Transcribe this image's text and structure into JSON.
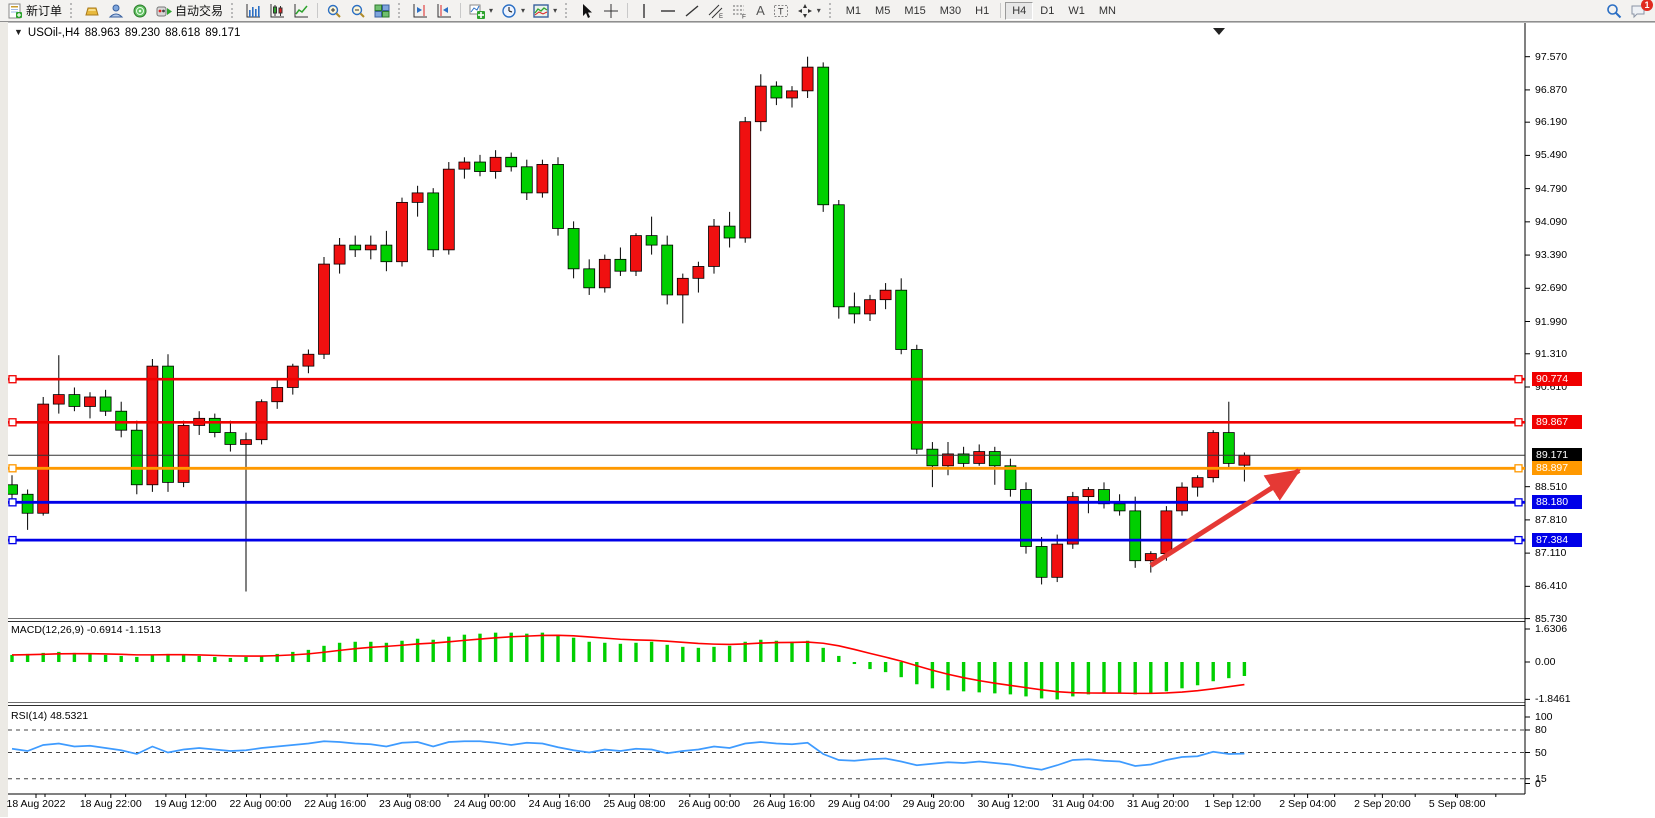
{
  "toolbar": {
    "new_order_label": "新订单",
    "auto_trading_label": "自动交易",
    "text_tool_label": "A",
    "label_tool_label": "T",
    "channel_tool_suffix": "E",
    "fibo_tool_suffix": "F",
    "timeframes": [
      "M1",
      "M5",
      "M15",
      "M30",
      "H1",
      "H4",
      "D1",
      "W1",
      "MN"
    ],
    "active_timeframe": "H4",
    "notification_count": "1"
  },
  "chart_header": {
    "symbol": "USOil-,H4",
    "open": "88.963",
    "high": "89.230",
    "low": "88.618",
    "close": "89.171"
  },
  "indicator_macd": {
    "label": "MACD(12,26,9)",
    "values": "-0.6914 -1.1513"
  },
  "indicator_rsi": {
    "label": "RSI(14)",
    "value": "48.5321"
  },
  "price_axis": {
    "ticks": [
      "97.570",
      "96.870",
      "96.190",
      "95.490",
      "94.790",
      "94.090",
      "93.390",
      "92.690",
      "91.990",
      "91.310",
      "90.610",
      "88.510",
      "87.810",
      "87.110",
      "86.410",
      "85.730"
    ]
  },
  "price_badges": [
    {
      "label": "90.774",
      "price": 90.774,
      "color": "#f00000"
    },
    {
      "label": "89.867",
      "price": 89.867,
      "color": "#f00000"
    },
    {
      "label": "89.171",
      "price": 89.171,
      "color": "#000000"
    },
    {
      "label": "88.897",
      "price": 88.897,
      "color": "#ff9900"
    },
    {
      "label": "88.180",
      "price": 88.18,
      "color": "#0000e8"
    },
    {
      "label": "87.384",
      "price": 87.384,
      "color": "#0000e8"
    }
  ],
  "macd_axis": [
    {
      "label": "1.6306",
      "value": 1.6306
    },
    {
      "label": "0.00",
      "value": 0.0
    },
    {
      "label": "-1.8461",
      "value": -1.8461
    }
  ],
  "rsi_axis": [
    {
      "label": "100",
      "value": 100
    },
    {
      "label": "80",
      "value": 80
    },
    {
      "label": "50",
      "value": 50
    },
    {
      "label": "15",
      "value": 15
    },
    {
      "label": "0",
      "value": 0
    }
  ],
  "time_axis": [
    "18 Aug 2022",
    "18 Aug 22:00",
    "19 Aug 12:00",
    "22 Aug 00:00",
    "22 Aug 16:00",
    "23 Aug 08:00",
    "24 Aug 00:00",
    "24 Aug 16:00",
    "25 Aug 08:00",
    "26 Aug 00:00",
    "26 Aug 16:00",
    "29 Aug 04:00",
    "29 Aug 20:00",
    "30 Aug 12:00",
    "31 Aug 04:00",
    "31 Aug 20:00",
    "1 Sep 12:00",
    "2 Sep 04:00",
    "2 Sep 20:00",
    "5 Sep 08:00"
  ],
  "chart_data": {
    "type": "candlestick",
    "symbol": "USOil",
    "timeframe": "H4",
    "colors": {
      "up": "#f01010",
      "down": "#00cf00",
      "wick": "#000000",
      "macd_bar": "#00cf00",
      "macd_signal": "#ff0000",
      "rsi_line": "#3e9bff",
      "arrow": "#e53935"
    },
    "candles": [
      [
        88.55,
        88.75,
        88.25,
        88.35
      ],
      [
        88.35,
        88.45,
        87.6,
        87.95
      ],
      [
        87.95,
        90.4,
        87.9,
        90.25
      ],
      [
        90.25,
        91.28,
        90.05,
        90.45
      ],
      [
        90.45,
        90.6,
        90.1,
        90.2
      ],
      [
        90.2,
        90.5,
        89.95,
        90.4
      ],
      [
        90.4,
        90.55,
        90.0,
        90.1
      ],
      [
        90.1,
        90.3,
        89.55,
        89.7
      ],
      [
        89.7,
        89.9,
        88.35,
        88.55
      ],
      [
        88.55,
        91.2,
        88.4,
        91.05
      ],
      [
        91.05,
        91.3,
        88.4,
        88.6
      ],
      [
        88.6,
        89.9,
        88.5,
        89.8
      ],
      [
        89.8,
        90.1,
        89.6,
        89.95
      ],
      [
        89.95,
        90.05,
        89.55,
        89.65
      ],
      [
        89.65,
        89.9,
        89.25,
        89.4
      ],
      [
        89.4,
        89.65,
        86.3,
        89.5
      ],
      [
        89.5,
        90.35,
        89.4,
        90.3
      ],
      [
        90.3,
        90.8,
        90.15,
        90.6
      ],
      [
        90.6,
        91.1,
        90.45,
        91.05
      ],
      [
        91.05,
        91.4,
        90.9,
        91.3
      ],
      [
        91.3,
        93.35,
        91.2,
        93.2
      ],
      [
        93.2,
        93.75,
        93.0,
        93.6
      ],
      [
        93.6,
        93.8,
        93.35,
        93.5
      ],
      [
        93.5,
        93.8,
        93.3,
        93.6
      ],
      [
        93.6,
        93.9,
        93.05,
        93.25
      ],
      [
        93.25,
        94.6,
        93.15,
        94.5
      ],
      [
        94.5,
        94.85,
        94.2,
        94.7
      ],
      [
        94.7,
        94.8,
        93.35,
        93.5
      ],
      [
        93.5,
        95.35,
        93.4,
        95.2
      ],
      [
        95.2,
        95.45,
        95.0,
        95.35
      ],
      [
        95.35,
        95.5,
        95.05,
        95.15
      ],
      [
        95.15,
        95.6,
        95.0,
        95.45
      ],
      [
        95.45,
        95.55,
        95.15,
        95.25
      ],
      [
        95.25,
        95.4,
        94.55,
        94.7
      ],
      [
        94.7,
        95.4,
        94.6,
        95.3
      ],
      [
        95.3,
        95.45,
        93.8,
        93.95
      ],
      [
        93.95,
        94.1,
        92.9,
        93.1
      ],
      [
        93.1,
        93.3,
        92.55,
        92.7
      ],
      [
        92.7,
        93.4,
        92.6,
        93.3
      ],
      [
        93.3,
        93.55,
        92.95,
        93.05
      ],
      [
        93.05,
        93.85,
        92.95,
        93.8
      ],
      [
        93.8,
        94.2,
        93.4,
        93.6
      ],
      [
        93.6,
        93.8,
        92.35,
        92.55
      ],
      [
        92.55,
        93.0,
        91.95,
        92.9
      ],
      [
        92.9,
        93.25,
        92.6,
        93.15
      ],
      [
        93.15,
        94.15,
        93.0,
        94.0
      ],
      [
        94.0,
        94.3,
        93.55,
        93.75
      ],
      [
        93.75,
        96.3,
        93.65,
        96.2
      ],
      [
        96.2,
        97.2,
        96.0,
        96.95
      ],
      [
        96.95,
        97.05,
        96.55,
        96.7
      ],
      [
        96.7,
        96.95,
        96.5,
        96.85
      ],
      [
        96.85,
        97.57,
        96.7,
        97.35
      ],
      [
        97.35,
        97.45,
        94.3,
        94.45
      ],
      [
        94.45,
        94.55,
        92.05,
        92.3
      ],
      [
        92.3,
        92.6,
        91.95,
        92.15
      ],
      [
        92.15,
        92.55,
        92.0,
        92.45
      ],
      [
        92.45,
        92.8,
        92.25,
        92.65
      ],
      [
        92.65,
        92.9,
        91.3,
        91.4
      ],
      [
        91.4,
        91.5,
        89.2,
        89.3
      ],
      [
        89.3,
        89.45,
        88.5,
        88.95
      ],
      [
        88.95,
        89.45,
        88.75,
        89.2
      ],
      [
        89.2,
        89.35,
        88.9,
        89.0
      ],
      [
        89.0,
        89.4,
        88.95,
        89.25
      ],
      [
        89.25,
        89.35,
        88.55,
        88.95
      ],
      [
        88.95,
        89.1,
        88.3,
        88.45
      ],
      [
        88.45,
        88.6,
        87.1,
        87.25
      ],
      [
        87.25,
        87.45,
        86.45,
        86.6
      ],
      [
        86.6,
        87.5,
        86.5,
        87.3
      ],
      [
        87.3,
        88.4,
        87.2,
        88.3
      ],
      [
        88.3,
        88.5,
        87.95,
        88.45
      ],
      [
        88.45,
        88.6,
        88.05,
        88.15
      ],
      [
        88.15,
        88.35,
        87.9,
        88.0
      ],
      [
        88.0,
        88.3,
        86.8,
        86.95
      ],
      [
        86.95,
        87.15,
        86.7,
        87.1
      ],
      [
        87.1,
        88.1,
        86.95,
        88.0
      ],
      [
        88.0,
        88.6,
        87.9,
        88.5
      ],
      [
        88.5,
        88.75,
        88.3,
        88.7
      ],
      [
        88.7,
        89.7,
        88.6,
        89.65
      ],
      [
        89.65,
        90.3,
        88.9,
        89.0
      ],
      [
        88.963,
        89.23,
        88.618,
        89.171
      ]
    ],
    "levels": [
      {
        "price": 90.774,
        "color": "#f00000",
        "width": 2.6
      },
      {
        "price": 89.867,
        "color": "#f00000",
        "width": 2.6
      },
      {
        "price": 88.897,
        "color": "#ff9900",
        "width": 2.8
      },
      {
        "price": 88.18,
        "color": "#0000e8",
        "width": 2.8
      },
      {
        "price": 87.384,
        "color": "#0000e8",
        "width": 2.8
      }
    ],
    "current_price": 89.171,
    "macd": {
      "histogram": [
        0.35,
        0.4,
        0.45,
        0.5,
        0.45,
        0.4,
        0.35,
        0.3,
        0.25,
        0.35,
        0.4,
        0.35,
        0.3,
        0.25,
        0.2,
        0.25,
        0.3,
        0.4,
        0.5,
        0.6,
        0.8,
        0.95,
        1.0,
        1.0,
        0.95,
        1.05,
        1.15,
        1.1,
        1.25,
        1.35,
        1.4,
        1.45,
        1.45,
        1.4,
        1.45,
        1.35,
        1.2,
        1.0,
        0.95,
        0.9,
        0.95,
        1.0,
        0.85,
        0.75,
        0.7,
        0.75,
        0.8,
        1.0,
        1.1,
        1.05,
        1.0,
        1.05,
        0.7,
        0.3,
        -0.1,
        -0.35,
        -0.5,
        -0.75,
        -1.1,
        -1.3,
        -1.4,
        -1.45,
        -1.5,
        -1.55,
        -1.6,
        -1.7,
        -1.8,
        -1.85,
        -1.7,
        -1.6,
        -1.55,
        -1.55,
        -1.6,
        -1.55,
        -1.45,
        -1.3,
        -1.15,
        -0.95,
        -0.8,
        -0.6914
      ],
      "signal_period": 9
    },
    "rsi": {
      "period": 14,
      "levels": [
        80,
        50,
        15
      ],
      "values": [
        55,
        52,
        60,
        62,
        58,
        59,
        56,
        53,
        48,
        58,
        50,
        54,
        56,
        54,
        52,
        53,
        56,
        58,
        60,
        62,
        65,
        64,
        62,
        61,
        58,
        63,
        64,
        58,
        64,
        65,
        65,
        63,
        60,
        63,
        62,
        57,
        53,
        50,
        54,
        52,
        55,
        54,
        49,
        52,
        54,
        58,
        56,
        62,
        64,
        62,
        61,
        63,
        48,
        40,
        39,
        41,
        42,
        38,
        33,
        35,
        37,
        36,
        38,
        36,
        34,
        30,
        27,
        33,
        40,
        41,
        39,
        38,
        32,
        34,
        40,
        44,
        45,
        51,
        48,
        48.53
      ]
    },
    "arrow": {
      "from_index": 73,
      "from_price": 86.85,
      "to_index": 82.5,
      "to_price": 88.85
    }
  }
}
